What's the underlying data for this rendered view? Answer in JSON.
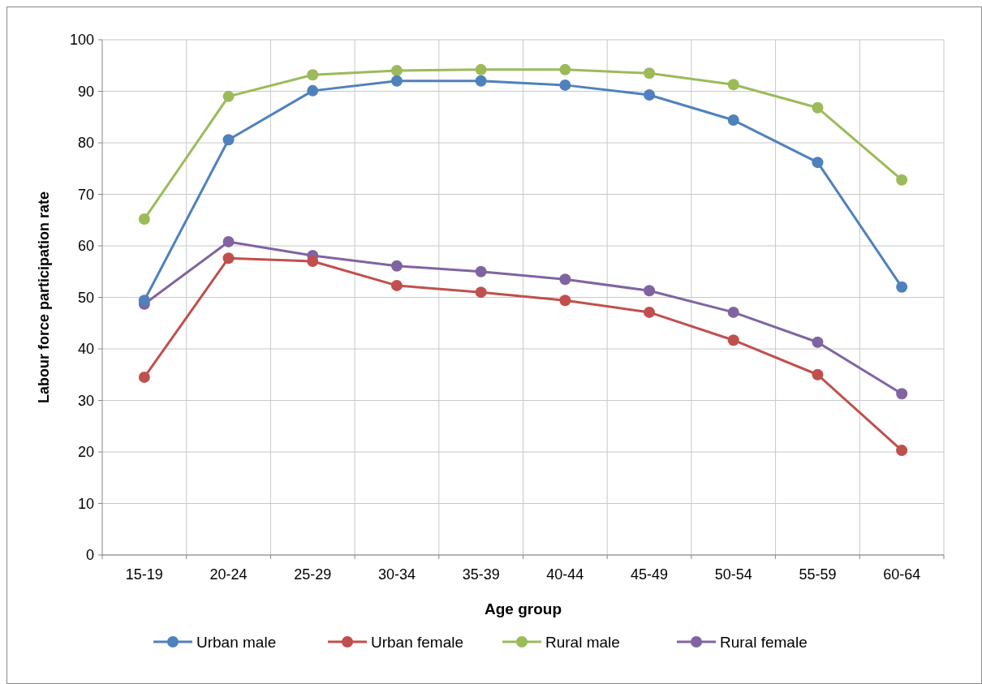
{
  "chart_data": {
    "type": "line",
    "xlabel": "Age group",
    "ylabel": "Labour force participation rate",
    "categories": [
      "15-19",
      "20-24",
      "25-29",
      "30-34",
      "35-39",
      "40-44",
      "45-49",
      "50-54",
      "55-59",
      "60-64"
    ],
    "series": [
      {
        "name": "Urban male",
        "color": "#4f81bd",
        "values": [
          49.4,
          80.6,
          90.1,
          92.0,
          92.0,
          91.2,
          89.3,
          84.4,
          76.2,
          52.0
        ]
      },
      {
        "name": "Urban female",
        "color": "#c0504d",
        "values": [
          34.5,
          57.6,
          57.0,
          52.3,
          51.0,
          49.4,
          47.1,
          41.7,
          35.0,
          20.3
        ]
      },
      {
        "name": "Rural male",
        "color": "#9bbb59",
        "values": [
          65.2,
          89.0,
          93.2,
          94.0,
          94.2,
          94.2,
          93.5,
          91.3,
          86.8,
          72.8
        ]
      },
      {
        "name": "Rural female",
        "color": "#8064a2",
        "values": [
          48.7,
          60.8,
          58.1,
          56.1,
          55.0,
          53.5,
          51.3,
          47.1,
          41.3,
          31.3
        ]
      }
    ],
    "ylim": [
      0,
      100
    ],
    "yticks": [
      0,
      10,
      20,
      30,
      40,
      50,
      60,
      70,
      80,
      90,
      100
    ],
    "grid": true,
    "legend": "bottom",
    "marker": "circle",
    "line_style": "solid"
  }
}
